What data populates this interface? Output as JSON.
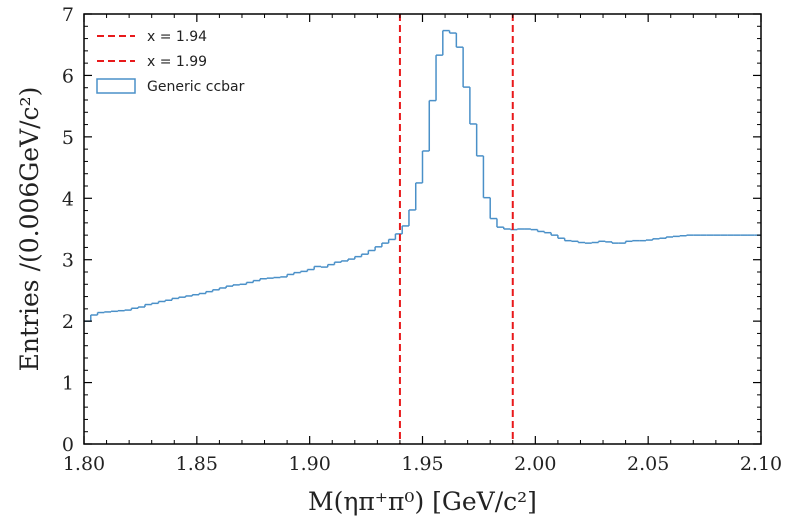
{
  "chart_data": {
    "type": "line",
    "style": "step-histogram",
    "xlabel": "M(ηπ⁺π⁰) [GeV/c²]",
    "ylabel": "Entries /(0.006GeV/c²)",
    "xlim": [
      1.8,
      2.1
    ],
    "ylim": [
      0,
      7
    ],
    "x_ticks": [
      "1.80",
      "1.85",
      "1.90",
      "1.95",
      "2.00",
      "2.05",
      "2.10"
    ],
    "y_ticks": [
      "0",
      "1",
      "2",
      "3",
      "4",
      "5",
      "6",
      "7"
    ],
    "grid": false,
    "legend_position": "top-left",
    "series": [
      {
        "name": "Generic ccbar",
        "color": "#4a90c8",
        "bin_width": 0.003,
        "x": [
          1.8,
          1.803,
          1.806,
          1.809,
          1.812,
          1.815,
          1.818,
          1.821,
          1.824,
          1.827,
          1.83,
          1.833,
          1.836,
          1.839,
          1.842,
          1.845,
          1.848,
          1.851,
          1.854,
          1.857,
          1.86,
          1.863,
          1.866,
          1.869,
          1.872,
          1.875,
          1.878,
          1.881,
          1.884,
          1.887,
          1.89,
          1.893,
          1.896,
          1.899,
          1.902,
          1.905,
          1.908,
          1.911,
          1.914,
          1.917,
          1.92,
          1.923,
          1.926,
          1.929,
          1.932,
          1.935,
          1.938,
          1.941,
          1.944,
          1.947,
          1.95,
          1.953,
          1.956,
          1.959,
          1.962,
          1.965,
          1.968,
          1.971,
          1.974,
          1.977,
          1.98,
          1.983,
          1.986,
          1.989,
          1.992,
          1.995,
          1.998,
          2.001,
          2.004,
          2.007,
          2.01,
          2.013,
          2.016,
          2.019,
          2.022,
          2.025,
          2.028,
          2.031,
          2.034,
          2.037,
          2.04,
          2.043,
          2.046,
          2.049,
          2.052,
          2.055,
          2.058,
          2.061,
          2.064,
          2.067,
          2.07,
          2.073,
          2.076,
          2.079,
          2.082,
          2.085,
          2.088,
          2.091,
          2.094,
          2.097
        ],
        "values": [
          2.0,
          2.1,
          2.14,
          2.15,
          2.16,
          2.17,
          2.18,
          2.21,
          2.23,
          2.27,
          2.29,
          2.32,
          2.34,
          2.37,
          2.39,
          2.41,
          2.43,
          2.45,
          2.48,
          2.51,
          2.54,
          2.57,
          2.59,
          2.6,
          2.63,
          2.66,
          2.69,
          2.7,
          2.71,
          2.72,
          2.76,
          2.79,
          2.81,
          2.84,
          2.89,
          2.88,
          2.92,
          2.96,
          2.98,
          3.01,
          3.05,
          3.09,
          3.15,
          3.21,
          3.27,
          3.33,
          3.42,
          3.55,
          3.81,
          4.25,
          4.77,
          5.59,
          6.33,
          6.73,
          6.69,
          6.46,
          5.81,
          5.21,
          4.69,
          4.01,
          3.67,
          3.53,
          3.5,
          3.49,
          3.5,
          3.5,
          3.49,
          3.46,
          3.44,
          3.4,
          3.35,
          3.31,
          3.3,
          3.28,
          3.27,
          3.28,
          3.3,
          3.29,
          3.27,
          3.27,
          3.3,
          3.31,
          3.31,
          3.32,
          3.34,
          3.35,
          3.37,
          3.38,
          3.39,
          3.4,
          3.4,
          3.4,
          3.4,
          3.4,
          3.4,
          3.4,
          3.4,
          3.4,
          3.4,
          3.4
        ]
      },
      {
        "name": "x = 1.94",
        "type": "vline",
        "x": 1.94,
        "color": "#e8191b",
        "dash": "dashed"
      },
      {
        "name": "x = 1.99",
        "type": "vline",
        "x": 1.99,
        "color": "#e8191b",
        "dash": "dashed"
      }
    ]
  }
}
